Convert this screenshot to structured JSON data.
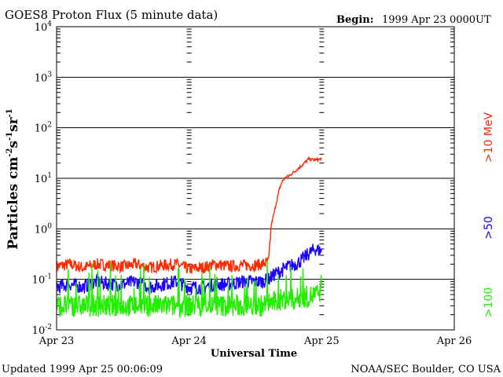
{
  "header": {
    "title": "GOES8 Proton Flux (5 minute data)",
    "begin_label": "Begin:",
    "begin_value": "1999 Apr 23 0000UT"
  },
  "footer": {
    "updated": "Updated 1999 Apr 25 00:06:09",
    "credit": "NOAA/SEC Boulder, CO USA"
  },
  "chart_data": {
    "type": "line",
    "title": "GOES8 Proton Flux (5 minute data)",
    "xlabel": "Universal Time",
    "ylabel_main": "Particles cm",
    "ylabel_sup1": "-2",
    "ylabel_s": "s",
    "ylabel_sup2": "-1",
    "ylabel_sr": "sr",
    "ylabel_sup3": "-1",
    "y_scale": "log",
    "ylim_exp": [
      -2,
      4
    ],
    "xlim_days": [
      0,
      3
    ],
    "grid": "horizontal at each decade",
    "x_ticks": [
      {
        "day": 0,
        "label": "Apr 23"
      },
      {
        "day": 1,
        "label": "Apr 24"
      },
      {
        "day": 2,
        "label": "Apr 25"
      },
      {
        "day": 3,
        "label": "Apr 26"
      }
    ],
    "y_ticks": [
      {
        "exp": -2,
        "base": "10",
        "sup": "-2"
      },
      {
        "exp": -1,
        "base": "10",
        "sup": "-1"
      },
      {
        "exp": 0,
        "base": "10",
        "sup": "0"
      },
      {
        "exp": 1,
        "base": "10",
        "sup": "1"
      },
      {
        "exp": 2,
        "base": "10",
        "sup": "2"
      },
      {
        "exp": 3,
        "base": "10",
        "sup": "3"
      },
      {
        "exp": 4,
        "base": "10",
        "sup": "4"
      }
    ],
    "series": [
      {
        "name": ">10 MeV",
        "color": "#ff2a00",
        "x": [
          0.0,
          0.1,
          0.2,
          0.3,
          0.4,
          0.5,
          0.6,
          0.7,
          0.8,
          0.9,
          1.0,
          1.1,
          1.2,
          1.3,
          1.4,
          1.5,
          1.55,
          1.6,
          1.62,
          1.64,
          1.66,
          1.68,
          1.7,
          1.72,
          1.75,
          1.8,
          1.85,
          1.9,
          1.95,
          2.0
        ],
        "y": [
          0.18,
          0.2,
          0.17,
          0.2,
          0.19,
          0.18,
          0.2,
          0.17,
          0.19,
          0.2,
          0.16,
          0.17,
          0.2,
          0.18,
          0.19,
          0.19,
          0.2,
          0.22,
          1.2,
          2.0,
          3.5,
          6.0,
          8.5,
          10,
          11,
          14,
          18,
          24,
          23,
          24
        ]
      },
      {
        "name": ">50",
        "color": "#1a00ff",
        "x": [
          0.0,
          0.1,
          0.2,
          0.3,
          0.4,
          0.5,
          0.6,
          0.7,
          0.8,
          0.9,
          1.0,
          1.1,
          1.2,
          1.3,
          1.4,
          1.5,
          1.55,
          1.6,
          1.65,
          1.7,
          1.75,
          1.8,
          1.85,
          1.9,
          1.95,
          2.0
        ],
        "y": [
          0.07,
          0.08,
          0.07,
          0.09,
          0.08,
          0.08,
          0.09,
          0.07,
          0.08,
          0.09,
          0.07,
          0.07,
          0.08,
          0.08,
          0.09,
          0.09,
          0.09,
          0.1,
          0.13,
          0.15,
          0.18,
          0.2,
          0.24,
          0.32,
          0.4,
          0.36
        ]
      },
      {
        "name": ">100",
        "color": "#22ee00",
        "x": [
          0.0,
          0.1,
          0.2,
          0.3,
          0.4,
          0.5,
          0.6,
          0.7,
          0.8,
          0.9,
          1.0,
          1.1,
          1.2,
          1.3,
          1.4,
          1.5,
          1.55,
          1.6,
          1.65,
          1.7,
          1.75,
          1.8,
          1.85,
          1.9,
          1.95,
          2.0
        ],
        "y": [
          0.03,
          0.03,
          0.03,
          0.03,
          0.03,
          0.03,
          0.03,
          0.03,
          0.03,
          0.03,
          0.03,
          0.03,
          0.03,
          0.03,
          0.03,
          0.03,
          0.03,
          0.035,
          0.035,
          0.04,
          0.04,
          0.04,
          0.045,
          0.045,
          0.05,
          0.05
        ]
      }
    ],
    "legend": [
      {
        "text": ">10 MeV",
        "color": "#ff2a00"
      },
      {
        "text": ">50",
        "color": "#1a00ff"
      },
      {
        "text": ">100",
        "color": "#22ee00"
      }
    ]
  }
}
